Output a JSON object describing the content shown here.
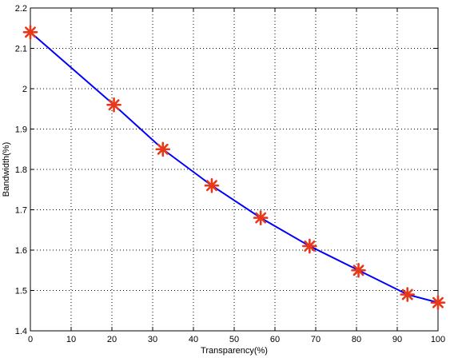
{
  "chart_data": {
    "type": "line",
    "xlabel": "Transparency(%)",
    "ylabel": "Bandwidth(%)",
    "xlim": [
      0,
      100
    ],
    "ylim": [
      1.4,
      2.2
    ],
    "xticks": [
      "0",
      "10",
      "20",
      "30",
      "40",
      "50",
      "60",
      "70",
      "80",
      "90",
      "100"
    ],
    "yticks": [
      "1.4",
      "1.5",
      "1.6",
      "1.7",
      "1.8",
      "1.9",
      "2",
      "2.1",
      "2.2"
    ],
    "grid": true,
    "series": [
      {
        "x": [
          0,
          20.5,
          32.5,
          44.5,
          56.5,
          68.5,
          80.5,
          92.5,
          100
        ],
        "y": [
          2.14,
          1.96,
          1.85,
          1.76,
          1.68,
          1.61,
          1.55,
          1.49,
          1.47
        ],
        "line_color": "#0000ff",
        "marker": "asterisk",
        "marker_color": "#e8381a"
      }
    ]
  }
}
